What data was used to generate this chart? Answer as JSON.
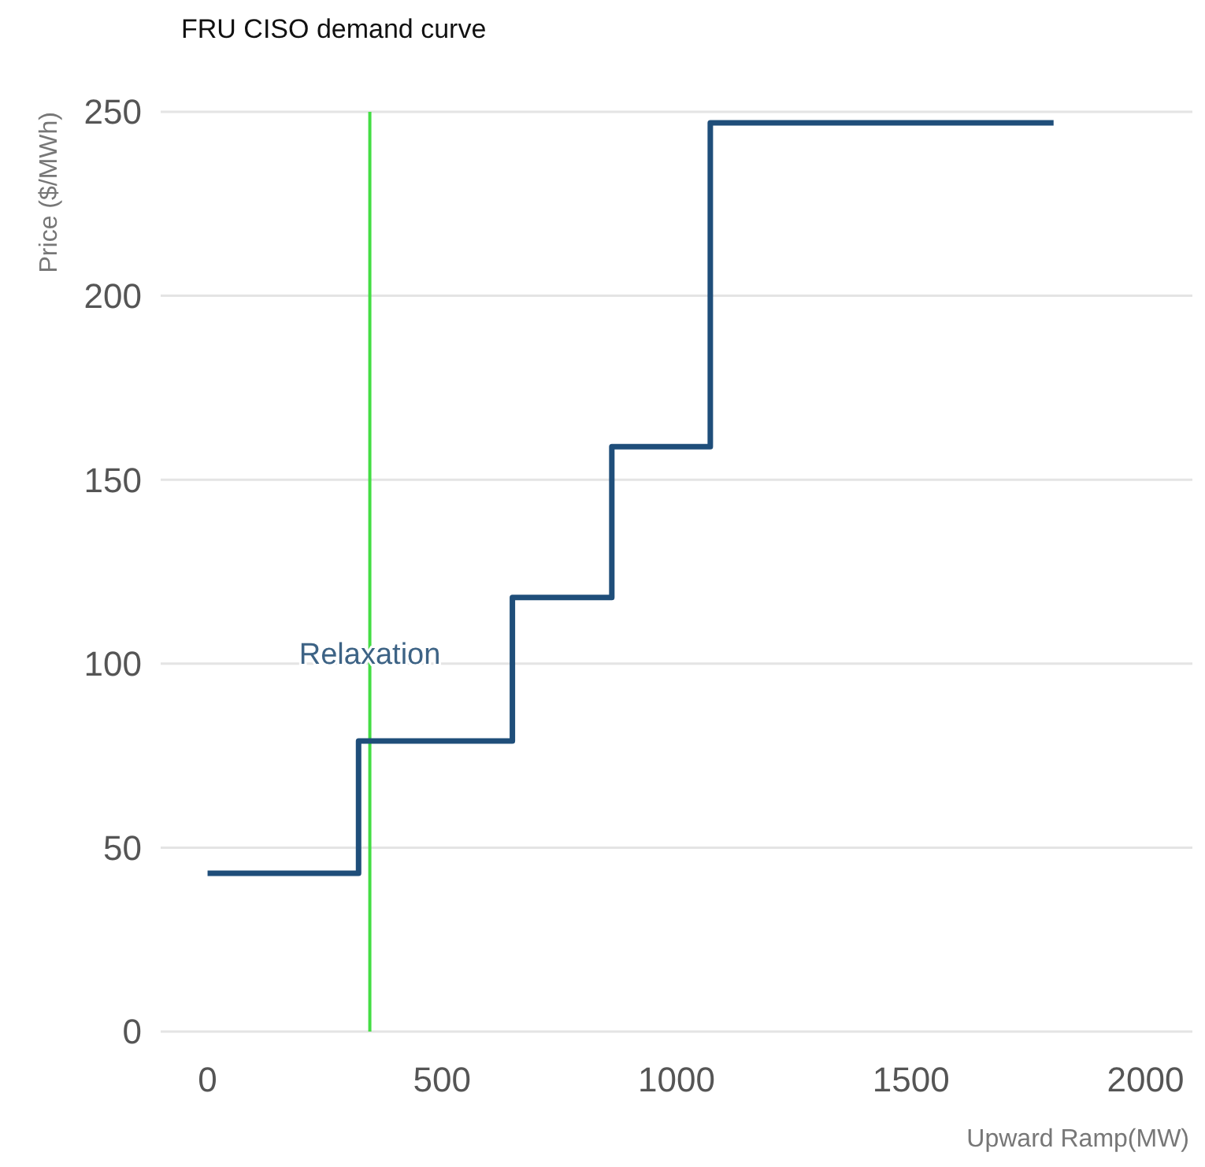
{
  "chart_data": {
    "type": "step",
    "title": "FRU CISO demand curve",
    "xlabel": "Upward Ramp(MW)",
    "ylabel": "Price ($/MWh)",
    "x": [
      0,
      322,
      650,
      862,
      1072,
      1804
    ],
    "series": [
      {
        "color": "#1f4e7a",
        "values": [
          43,
          79,
          118,
          159,
          247,
          247
        ]
      }
    ],
    "xlim": [
      -100,
      2100
    ],
    "xticks": [
      0,
      500,
      1000,
      1500,
      2000
    ],
    "ylim": [
      0,
      250
    ],
    "yticks": [
      0,
      50,
      100,
      150,
      200,
      250
    ],
    "grid": "y",
    "ref_lines": [
      {
        "axis": "x",
        "value": 346,
        "label": "Relaxation",
        "color": "#44dd44"
      }
    ]
  }
}
